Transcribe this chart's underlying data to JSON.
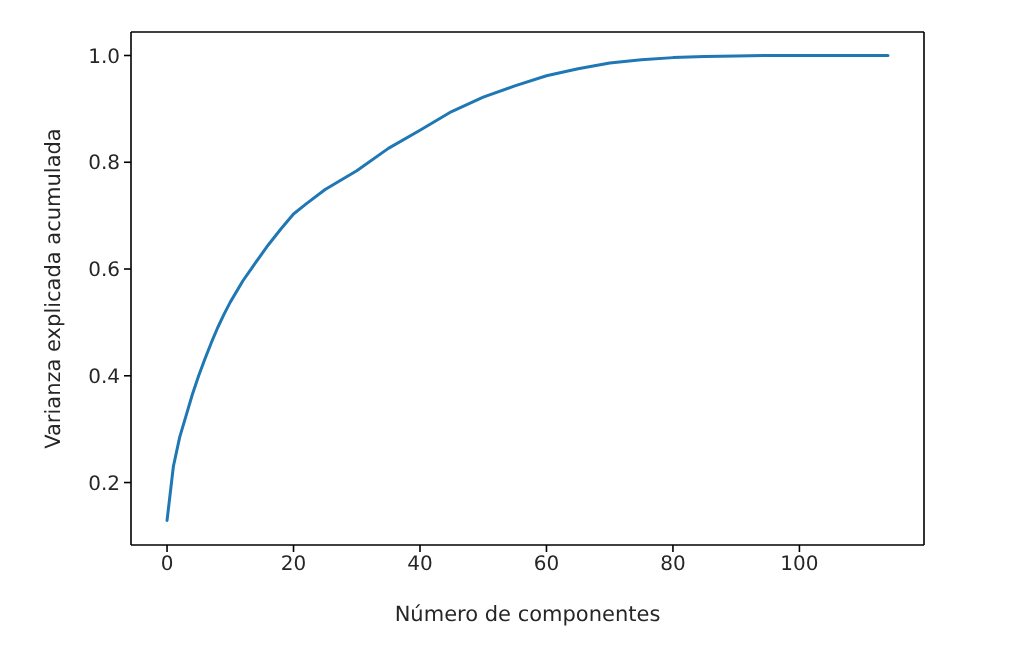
{
  "chart_data": {
    "type": "line",
    "xlabel": "Número de componentes",
    "ylabel": "Varianza explicada acumulada",
    "x": [
      0,
      1,
      2,
      3,
      4,
      5,
      6,
      7,
      8,
      9,
      10,
      12,
      14,
      16,
      18,
      20,
      22,
      25,
      30,
      35,
      40,
      45,
      50,
      55,
      60,
      65,
      70,
      75,
      80,
      85,
      90,
      95,
      100,
      105,
      110,
      114
    ],
    "series": [
      {
        "color": "#1f77b4",
        "values": [
          0.129,
          0.23,
          0.285,
          0.325,
          0.365,
          0.4,
          0.432,
          0.462,
          0.49,
          0.515,
          0.538,
          0.578,
          0.612,
          0.645,
          0.675,
          0.703,
          0.722,
          0.749,
          0.784,
          0.826,
          0.86,
          0.895,
          0.922,
          0.943,
          0.962,
          0.975,
          0.986,
          0.992,
          0.996,
          0.998,
          0.999,
          1.0,
          1.0,
          1.0,
          1.0,
          1.0
        ]
      }
    ],
    "xlim": [
      -5.7,
      119.7
    ],
    "ylim": [
      0.083,
      1.044
    ],
    "xticks": [
      0,
      20,
      40,
      60,
      80,
      100
    ],
    "yticks": [
      0.2,
      0.4,
      0.6,
      0.8,
      {
        "value": 1,
        "label": "1.0"
      }
    ],
    "marker": "none",
    "line_style": "solid"
  }
}
